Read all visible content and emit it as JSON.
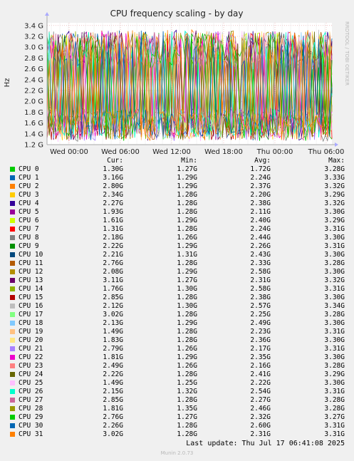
{
  "chart_data": {
    "type": "line",
    "title": "CPU frequency scaling - by day",
    "ylabel": "Hz",
    "watermark": "RRDTOOL / TOBI OETIKER",
    "y_ticks": [
      "1.2 G",
      "1.4 G",
      "1.6 G",
      "1.8 G",
      "2.0 G",
      "2.2 G",
      "2.4 G",
      "2.6 G",
      "2.8 G",
      "3.0 G",
      "3.2 G",
      "3.4 G"
    ],
    "ylim": [
      1.2,
      3.45
    ],
    "x_ticks": [
      "Wed 00:00",
      "Wed 06:00",
      "Wed 12:00",
      "Wed 18:00",
      "Thu 00:00",
      "Thu 06:00"
    ],
    "grid": true,
    "columns": {
      "cur": "Cur:",
      "min": "Min:",
      "avg": "Avg:",
      "max": "Max:"
    },
    "series": [
      {
        "name": "CPU 0",
        "color": "#00cc00",
        "cur": "1.30G",
        "min": "1.27G",
        "avg": "1.72G",
        "max": "3.28G"
      },
      {
        "name": "CPU 1",
        "color": "#0066b3",
        "cur": "3.16G",
        "min": "1.29G",
        "avg": "2.24G",
        "max": "3.33G"
      },
      {
        "name": "CPU 2",
        "color": "#ff8000",
        "cur": "2.80G",
        "min": "1.29G",
        "avg": "2.37G",
        "max": "3.32G"
      },
      {
        "name": "CPU 3",
        "color": "#ffcc00",
        "cur": "2.34G",
        "min": "1.28G",
        "avg": "2.20G",
        "max": "3.29G"
      },
      {
        "name": "CPU 4",
        "color": "#330099",
        "cur": "2.27G",
        "min": "1.28G",
        "avg": "2.38G",
        "max": "3.32G"
      },
      {
        "name": "CPU 5",
        "color": "#990099",
        "cur": "1.93G",
        "min": "1.28G",
        "avg": "2.11G",
        "max": "3.30G"
      },
      {
        "name": "CPU 6",
        "color": "#ccff00",
        "cur": "1.61G",
        "min": "1.29G",
        "avg": "2.40G",
        "max": "3.29G"
      },
      {
        "name": "CPU 7",
        "color": "#ff0000",
        "cur": "1.31G",
        "min": "1.28G",
        "avg": "2.24G",
        "max": "3.31G"
      },
      {
        "name": "CPU 8",
        "color": "#808080",
        "cur": "2.18G",
        "min": "1.26G",
        "avg": "2.44G",
        "max": "3.30G"
      },
      {
        "name": "CPU 9",
        "color": "#008f00",
        "cur": "2.22G",
        "min": "1.29G",
        "avg": "2.26G",
        "max": "3.31G"
      },
      {
        "name": "CPU 10",
        "color": "#00487d",
        "cur": "2.21G",
        "min": "1.31G",
        "avg": "2.43G",
        "max": "3.30G"
      },
      {
        "name": "CPU 11",
        "color": "#b35a00",
        "cur": "2.76G",
        "min": "1.28G",
        "avg": "2.33G",
        "max": "3.28G"
      },
      {
        "name": "CPU 12",
        "color": "#b38f00",
        "cur": "2.08G",
        "min": "1.29G",
        "avg": "2.58G",
        "max": "3.30G"
      },
      {
        "name": "CPU 13",
        "color": "#6b006b",
        "cur": "3.11G",
        "min": "1.27G",
        "avg": "2.31G",
        "max": "3.32G"
      },
      {
        "name": "CPU 14",
        "color": "#8fb300",
        "cur": "1.76G",
        "min": "1.30G",
        "avg": "2.58G",
        "max": "3.31G"
      },
      {
        "name": "CPU 15",
        "color": "#b30000",
        "cur": "2.85G",
        "min": "1.28G",
        "avg": "2.38G",
        "max": "3.30G"
      },
      {
        "name": "CPU 16",
        "color": "#bebebe",
        "cur": "2.12G",
        "min": "1.30G",
        "avg": "2.57G",
        "max": "3.34G"
      },
      {
        "name": "CPU 17",
        "color": "#80ff80",
        "cur": "3.02G",
        "min": "1.28G",
        "avg": "2.25G",
        "max": "3.28G"
      },
      {
        "name": "CPU 18",
        "color": "#80c9ff",
        "cur": "2.13G",
        "min": "1.29G",
        "avg": "2.49G",
        "max": "3.30G"
      },
      {
        "name": "CPU 19",
        "color": "#ffc080",
        "cur": "1.49G",
        "min": "1.28G",
        "avg": "2.23G",
        "max": "3.31G"
      },
      {
        "name": "CPU 20",
        "color": "#ffe680",
        "cur": "1.83G",
        "min": "1.28G",
        "avg": "2.36G",
        "max": "3.30G"
      },
      {
        "name": "CPU 21",
        "color": "#aa80ff",
        "cur": "2.79G",
        "min": "1.26G",
        "avg": "2.17G",
        "max": "3.31G"
      },
      {
        "name": "CPU 22",
        "color": "#ee00cc",
        "cur": "1.81G",
        "min": "1.29G",
        "avg": "2.35G",
        "max": "3.30G"
      },
      {
        "name": "CPU 23",
        "color": "#ff8080",
        "cur": "2.49G",
        "min": "1.26G",
        "avg": "2.16G",
        "max": "3.28G"
      },
      {
        "name": "CPU 24",
        "color": "#666600",
        "cur": "2.22G",
        "min": "1.28G",
        "avg": "2.41G",
        "max": "3.29G"
      },
      {
        "name": "CPU 25",
        "color": "#ffbfff",
        "cur": "1.49G",
        "min": "1.25G",
        "avg": "2.22G",
        "max": "3.30G"
      },
      {
        "name": "CPU 26",
        "color": "#00ffcc",
        "cur": "2.15G",
        "min": "1.32G",
        "avg": "2.54G",
        "max": "3.31G"
      },
      {
        "name": "CPU 27",
        "color": "#cc6699",
        "cur": "2.85G",
        "min": "1.28G",
        "avg": "2.27G",
        "max": "3.28G"
      },
      {
        "name": "CPU 28",
        "color": "#999900",
        "cur": "1.81G",
        "min": "1.35G",
        "avg": "2.46G",
        "max": "3.28G"
      },
      {
        "name": "CPU 29",
        "color": "#00cc00",
        "cur": "2.76G",
        "min": "1.27G",
        "avg": "2.32G",
        "max": "3.27G"
      },
      {
        "name": "CPU 30",
        "color": "#0066b3",
        "cur": "2.26G",
        "min": "1.28G",
        "avg": "2.60G",
        "max": "3.31G"
      },
      {
        "name": "CPU 31",
        "color": "#ff8000",
        "cur": "3.02G",
        "min": "1.28G",
        "avg": "2.31G",
        "max": "3.31G"
      }
    ]
  },
  "footer": {
    "last_update": "Last update: Thu Jul 17 06:41:08 2025",
    "munin": "Munin 2.0.73"
  }
}
